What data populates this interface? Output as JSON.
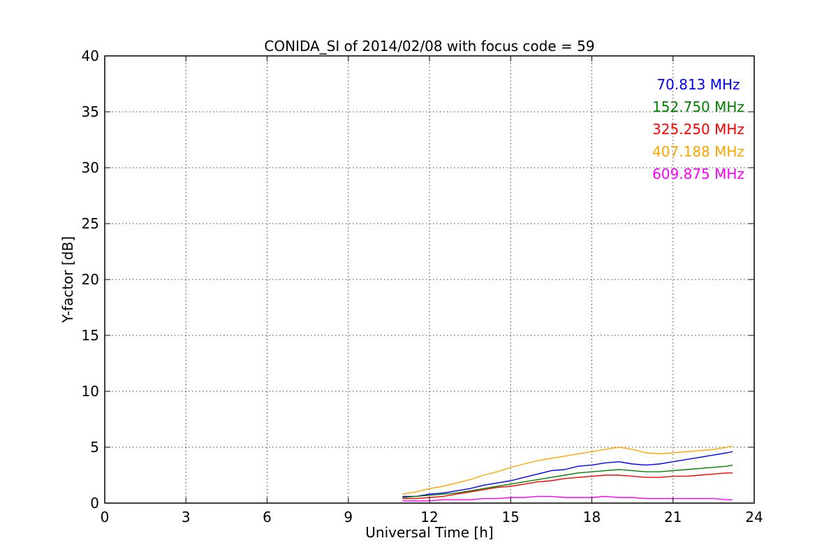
{
  "chart_data": {
    "type": "line",
    "title": "CONIDA_SI of 2014/02/08 with focus code = 59",
    "xlabel": "Universal Time [h]",
    "ylabel": "Y-factor [dB]",
    "xlim": [
      0,
      24
    ],
    "ylim": [
      0,
      40
    ],
    "xticks": [
      0,
      3,
      6,
      9,
      12,
      15,
      18,
      21,
      24
    ],
    "yticks": [
      0,
      5,
      10,
      15,
      20,
      25,
      30,
      35,
      40
    ],
    "grid": true,
    "legend_position": "top-right",
    "series": [
      {
        "name": "70.813 MHz",
        "color": "#0000ff",
        "x": [
          11.0,
          11.5,
          12.0,
          12.5,
          13.0,
          13.5,
          14.0,
          14.5,
          15.0,
          15.5,
          16.0,
          16.5,
          17.0,
          17.5,
          18.0,
          18.5,
          19.0,
          19.5,
          20.0,
          20.5,
          21.0,
          21.5,
          22.0,
          22.5,
          23.0,
          23.2
        ],
        "y": [
          0.6,
          0.6,
          0.8,
          0.9,
          1.1,
          1.3,
          1.6,
          1.8,
          2.0,
          2.3,
          2.6,
          2.9,
          3.0,
          3.3,
          3.4,
          3.6,
          3.7,
          3.5,
          3.4,
          3.5,
          3.7,
          3.9,
          4.1,
          4.3,
          4.5,
          4.6
        ]
      },
      {
        "name": "152.750 MHz",
        "color": "#008000",
        "x": [
          11.0,
          11.5,
          12.0,
          12.5,
          13.0,
          13.5,
          14.0,
          14.5,
          15.0,
          15.5,
          16.0,
          16.5,
          17.0,
          17.5,
          18.0,
          18.5,
          19.0,
          19.5,
          20.0,
          20.5,
          21.0,
          21.5,
          22.0,
          22.5,
          23.0,
          23.2
        ],
        "y": [
          0.5,
          0.6,
          0.7,
          0.8,
          0.9,
          1.1,
          1.3,
          1.5,
          1.7,
          1.9,
          2.1,
          2.3,
          2.5,
          2.7,
          2.8,
          2.9,
          3.0,
          2.9,
          2.8,
          2.8,
          2.9,
          3.0,
          3.1,
          3.2,
          3.3,
          3.4
        ]
      },
      {
        "name": "325.250 MHz",
        "color": "#ff0000",
        "x": [
          11.0,
          11.5,
          12.0,
          12.5,
          13.0,
          13.5,
          14.0,
          14.5,
          15.0,
          15.5,
          16.0,
          16.5,
          17.0,
          17.5,
          18.0,
          18.5,
          19.0,
          19.5,
          20.0,
          20.5,
          21.0,
          21.5,
          22.0,
          22.5,
          23.0,
          23.2
        ],
        "y": [
          0.4,
          0.4,
          0.5,
          0.6,
          0.8,
          1.0,
          1.2,
          1.4,
          1.5,
          1.7,
          1.9,
          2.0,
          2.2,
          2.3,
          2.4,
          2.5,
          2.5,
          2.4,
          2.3,
          2.3,
          2.4,
          2.4,
          2.5,
          2.6,
          2.7,
          2.7
        ]
      },
      {
        "name": "407.188 MHz",
        "color": "#ffa500",
        "x": [
          11.0,
          11.5,
          12.0,
          12.5,
          13.0,
          13.5,
          14.0,
          14.5,
          15.0,
          15.5,
          16.0,
          16.5,
          17.0,
          17.5,
          18.0,
          18.5,
          19.0,
          19.5,
          20.0,
          20.5,
          21.0,
          21.5,
          22.0,
          22.5,
          23.0,
          23.2
        ],
        "y": [
          0.8,
          1.0,
          1.3,
          1.5,
          1.8,
          2.1,
          2.5,
          2.8,
          3.2,
          3.5,
          3.8,
          4.0,
          4.2,
          4.4,
          4.6,
          4.8,
          5.0,
          4.8,
          4.5,
          4.4,
          4.5,
          4.6,
          4.7,
          4.8,
          5.0,
          5.1
        ]
      },
      {
        "name": "609.875 MHz",
        "color": "#ff00ff",
        "x": [
          11.0,
          11.5,
          12.0,
          12.5,
          13.0,
          13.5,
          14.0,
          14.5,
          15.0,
          15.5,
          16.0,
          16.5,
          17.0,
          17.5,
          18.0,
          18.5,
          19.0,
          19.5,
          20.0,
          20.5,
          21.0,
          21.5,
          22.0,
          22.5,
          23.0,
          23.2
        ],
        "y": [
          0.2,
          0.2,
          0.2,
          0.3,
          0.3,
          0.3,
          0.4,
          0.4,
          0.5,
          0.5,
          0.6,
          0.6,
          0.5,
          0.5,
          0.5,
          0.6,
          0.5,
          0.5,
          0.4,
          0.4,
          0.4,
          0.4,
          0.4,
          0.4,
          0.3,
          0.3
        ]
      }
    ]
  }
}
